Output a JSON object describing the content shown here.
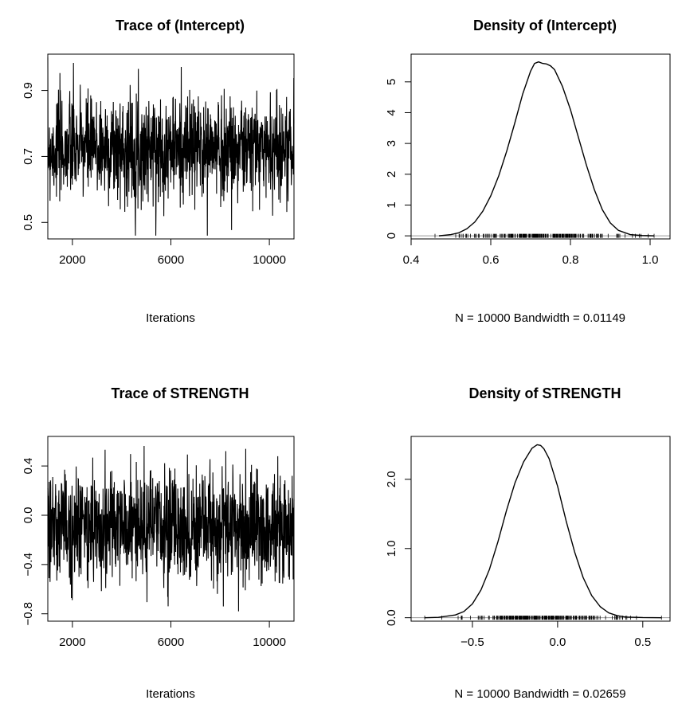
{
  "chart_data": [
    {
      "type": "line",
      "title": "Trace of (Intercept)",
      "xlabel": "Iterations",
      "ylabel": "",
      "xlim": [
        1001,
        11000
      ],
      "ylim": [
        0.45,
        1.01
      ],
      "xticks": [
        2000,
        6000,
        10000
      ],
      "xtick_labels": [
        "2000",
        "6000",
        "10000"
      ],
      "yticks": [
        0.5,
        0.7,
        0.9
      ],
      "ytick_labels": [
        "0.5",
        "0.7",
        "0.9"
      ],
      "series": [
        {
          "x": [
            1001,
            2000,
            3000,
            4000,
            5000,
            6000,
            7000,
            8000,
            9000,
            10000,
            11000
          ],
          "center": [
            0.72,
            0.72,
            0.72,
            0.72,
            0.72,
            0.72,
            0.72,
            0.72,
            0.72,
            0.72,
            0.72
          ],
          "band_low": [
            0.6,
            0.6,
            0.6,
            0.6,
            0.6,
            0.6,
            0.6,
            0.6,
            0.6,
            0.6,
            0.6
          ],
          "band_high": [
            0.85,
            0.85,
            0.85,
            0.85,
            0.85,
            0.85,
            0.85,
            0.85,
            0.85,
            0.85,
            0.85
          ],
          "min": 0.46,
          "max": 1.0
        }
      ],
      "grid": false
    },
    {
      "type": "line",
      "title": "Density of (Intercept)",
      "xlabel": "N = 10000   Bandwidth = 0.01149",
      "ylabel": "",
      "xlim": [
        0.4,
        1.05
      ],
      "ylim": [
        -0.1,
        5.9
      ],
      "xticks": [
        0.4,
        0.6,
        0.8,
        1.0
      ],
      "xtick_labels": [
        "0.4",
        "0.6",
        "0.8",
        "1.0"
      ],
      "yticks": [
        0,
        1,
        2,
        3,
        4,
        5
      ],
      "ytick_labels": [
        "0",
        "1",
        "2",
        "3",
        "4",
        "5"
      ],
      "series": [
        {
          "x": [
            0.47,
            0.5,
            0.52,
            0.54,
            0.56,
            0.58,
            0.6,
            0.62,
            0.64,
            0.66,
            0.68,
            0.7,
            0.71,
            0.72,
            0.73,
            0.74,
            0.75,
            0.76,
            0.78,
            0.8,
            0.82,
            0.84,
            0.86,
            0.88,
            0.9,
            0.92,
            0.95,
            0.98,
            1.01
          ],
          "y": [
            0.0,
            0.04,
            0.1,
            0.23,
            0.45,
            0.8,
            1.3,
            1.95,
            2.75,
            3.65,
            4.6,
            5.35,
            5.6,
            5.65,
            5.6,
            5.58,
            5.52,
            5.4,
            4.85,
            4.1,
            3.2,
            2.3,
            1.5,
            0.85,
            0.42,
            0.18,
            0.04,
            0.01,
            0.0
          ]
        }
      ],
      "rug": {
        "from": 0.46,
        "to": 1.01
      },
      "grid": false
    },
    {
      "type": "line",
      "title": "Trace of STRENGTH",
      "xlabel": "Iterations",
      "ylabel": "",
      "xlim": [
        1001,
        11000
      ],
      "ylim": [
        -0.86,
        0.64
      ],
      "xticks": [
        2000,
        6000,
        10000
      ],
      "xtick_labels": [
        "2000",
        "6000",
        "10000"
      ],
      "yticks": [
        -0.8,
        -0.4,
        0.0,
        0.4
      ],
      "ytick_labels": [
        "−0.8",
        "−0.4",
        "0.0",
        "0.4"
      ],
      "series": [
        {
          "x": [
            1001,
            2000,
            3000,
            4000,
            5000,
            6000,
            7000,
            8000,
            9000,
            10000,
            11000
          ],
          "center": [
            -0.1,
            -0.1,
            -0.1,
            -0.1,
            -0.1,
            -0.1,
            -0.1,
            -0.1,
            -0.1,
            -0.1,
            -0.1
          ],
          "band_low": [
            -0.45,
            -0.45,
            -0.45,
            -0.45,
            -0.45,
            -0.45,
            -0.45,
            -0.45,
            -0.45,
            -0.45,
            -0.45
          ],
          "band_high": [
            0.25,
            0.25,
            0.25,
            0.25,
            0.25,
            0.25,
            0.25,
            0.25,
            0.25,
            0.25,
            0.25
          ],
          "min": -0.78,
          "max": 0.61
        }
      ],
      "grid": false
    },
    {
      "type": "line",
      "title": "Density of STRENGTH",
      "xlabel": "N = 10000   Bandwidth = 0.02659",
      "ylabel": "",
      "xlim": [
        -0.86,
        0.66
      ],
      "ylim": [
        -0.05,
        2.62
      ],
      "xticks": [
        -0.5,
        0.0,
        0.5
      ],
      "xtick_labels": [
        "−0.5",
        "0.0",
        "0.5"
      ],
      "yticks": [
        0.0,
        1.0,
        2.0
      ],
      "ytick_labels": [
        "0.0",
        "1.0",
        "2.0"
      ],
      "series": [
        {
          "x": [
            -0.78,
            -0.7,
            -0.6,
            -0.55,
            -0.5,
            -0.45,
            -0.4,
            -0.35,
            -0.3,
            -0.25,
            -0.2,
            -0.15,
            -0.12,
            -0.1,
            -0.08,
            -0.05,
            0.0,
            0.05,
            0.1,
            0.15,
            0.2,
            0.25,
            0.3,
            0.35,
            0.4,
            0.5,
            0.61
          ],
          "y": [
            0.0,
            0.005,
            0.04,
            0.09,
            0.2,
            0.4,
            0.7,
            1.1,
            1.55,
            1.95,
            2.25,
            2.45,
            2.5,
            2.49,
            2.44,
            2.3,
            1.9,
            1.4,
            0.95,
            0.58,
            0.32,
            0.16,
            0.07,
            0.03,
            0.01,
            0.002,
            0.0
          ]
        }
      ],
      "rug": {
        "from": -0.78,
        "to": 0.61
      },
      "grid": false
    }
  ]
}
